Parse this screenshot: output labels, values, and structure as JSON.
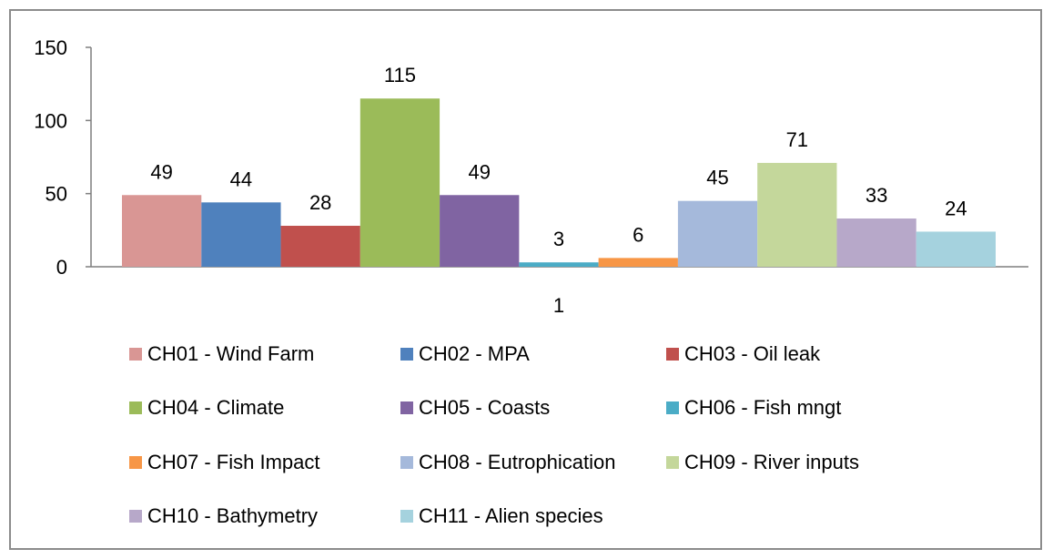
{
  "chart_data": {
    "type": "bar",
    "categories": [
      "1"
    ],
    "ylim": [
      0,
      150
    ],
    "yticks": [
      0,
      50,
      100,
      150
    ],
    "grid": false,
    "legend_position": "bottom",
    "series": [
      {
        "name": "CH01 - Wind Farm",
        "values": [
          49
        ],
        "color": "#d99694"
      },
      {
        "name": "CH02 - MPA",
        "values": [
          44
        ],
        "color": "#4f81bd"
      },
      {
        "name": "CH03 - Oil leak",
        "values": [
          28
        ],
        "color": "#c0504d"
      },
      {
        "name": "CH04 - Climate",
        "values": [
          115
        ],
        "color": "#9bbb59"
      },
      {
        "name": "CH05 - Coasts",
        "values": [
          49
        ],
        "color": "#8064a2"
      },
      {
        "name": "CH06 - Fish mngt",
        "values": [
          3
        ],
        "color": "#4bacc6"
      },
      {
        "name": "CH07 - Fish Impact",
        "values": [
          6
        ],
        "color": "#f79646"
      },
      {
        "name": "CH08 - Eutrophication",
        "values": [
          45
        ],
        "color": "#a5b9db"
      },
      {
        "name": "CH09 - River inputs",
        "values": [
          71
        ],
        "color": "#c4d79b"
      },
      {
        "name": "CH10 - Bathymetry",
        "values": [
          33
        ],
        "color": "#b7a8c9"
      },
      {
        "name": "CH11 - Alien species",
        "values": [
          24
        ],
        "color": "#a5d2de"
      }
    ]
  }
}
